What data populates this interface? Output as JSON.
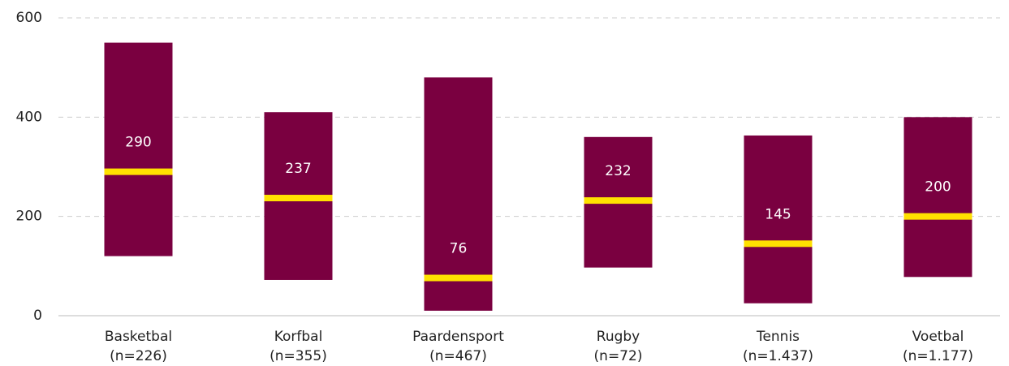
{
  "chart_data": {
    "type": "floating_bar",
    "categories": [
      "Basketbal",
      "Korfbal",
      "Paardensport",
      "Rugby",
      "Tennis",
      "Voetbal"
    ],
    "sample_sizes": [
      "(n=226)",
      "(n=355)",
      "(n=467)",
      "(n=72)",
      "(n=1.437)",
      "(n=1.177)"
    ],
    "low": [
      120,
      72,
      10,
      97,
      25,
      78
    ],
    "high": [
      550,
      410,
      480,
      360,
      363,
      400
    ],
    "median": [
      290,
      237,
      76,
      232,
      145,
      200
    ],
    "bar_color": "#7a0040",
    "median_color": "#ffe100",
    "ylim": [
      0,
      600
    ],
    "yticks": [
      0,
      200,
      400,
      600
    ],
    "grid": true
  }
}
